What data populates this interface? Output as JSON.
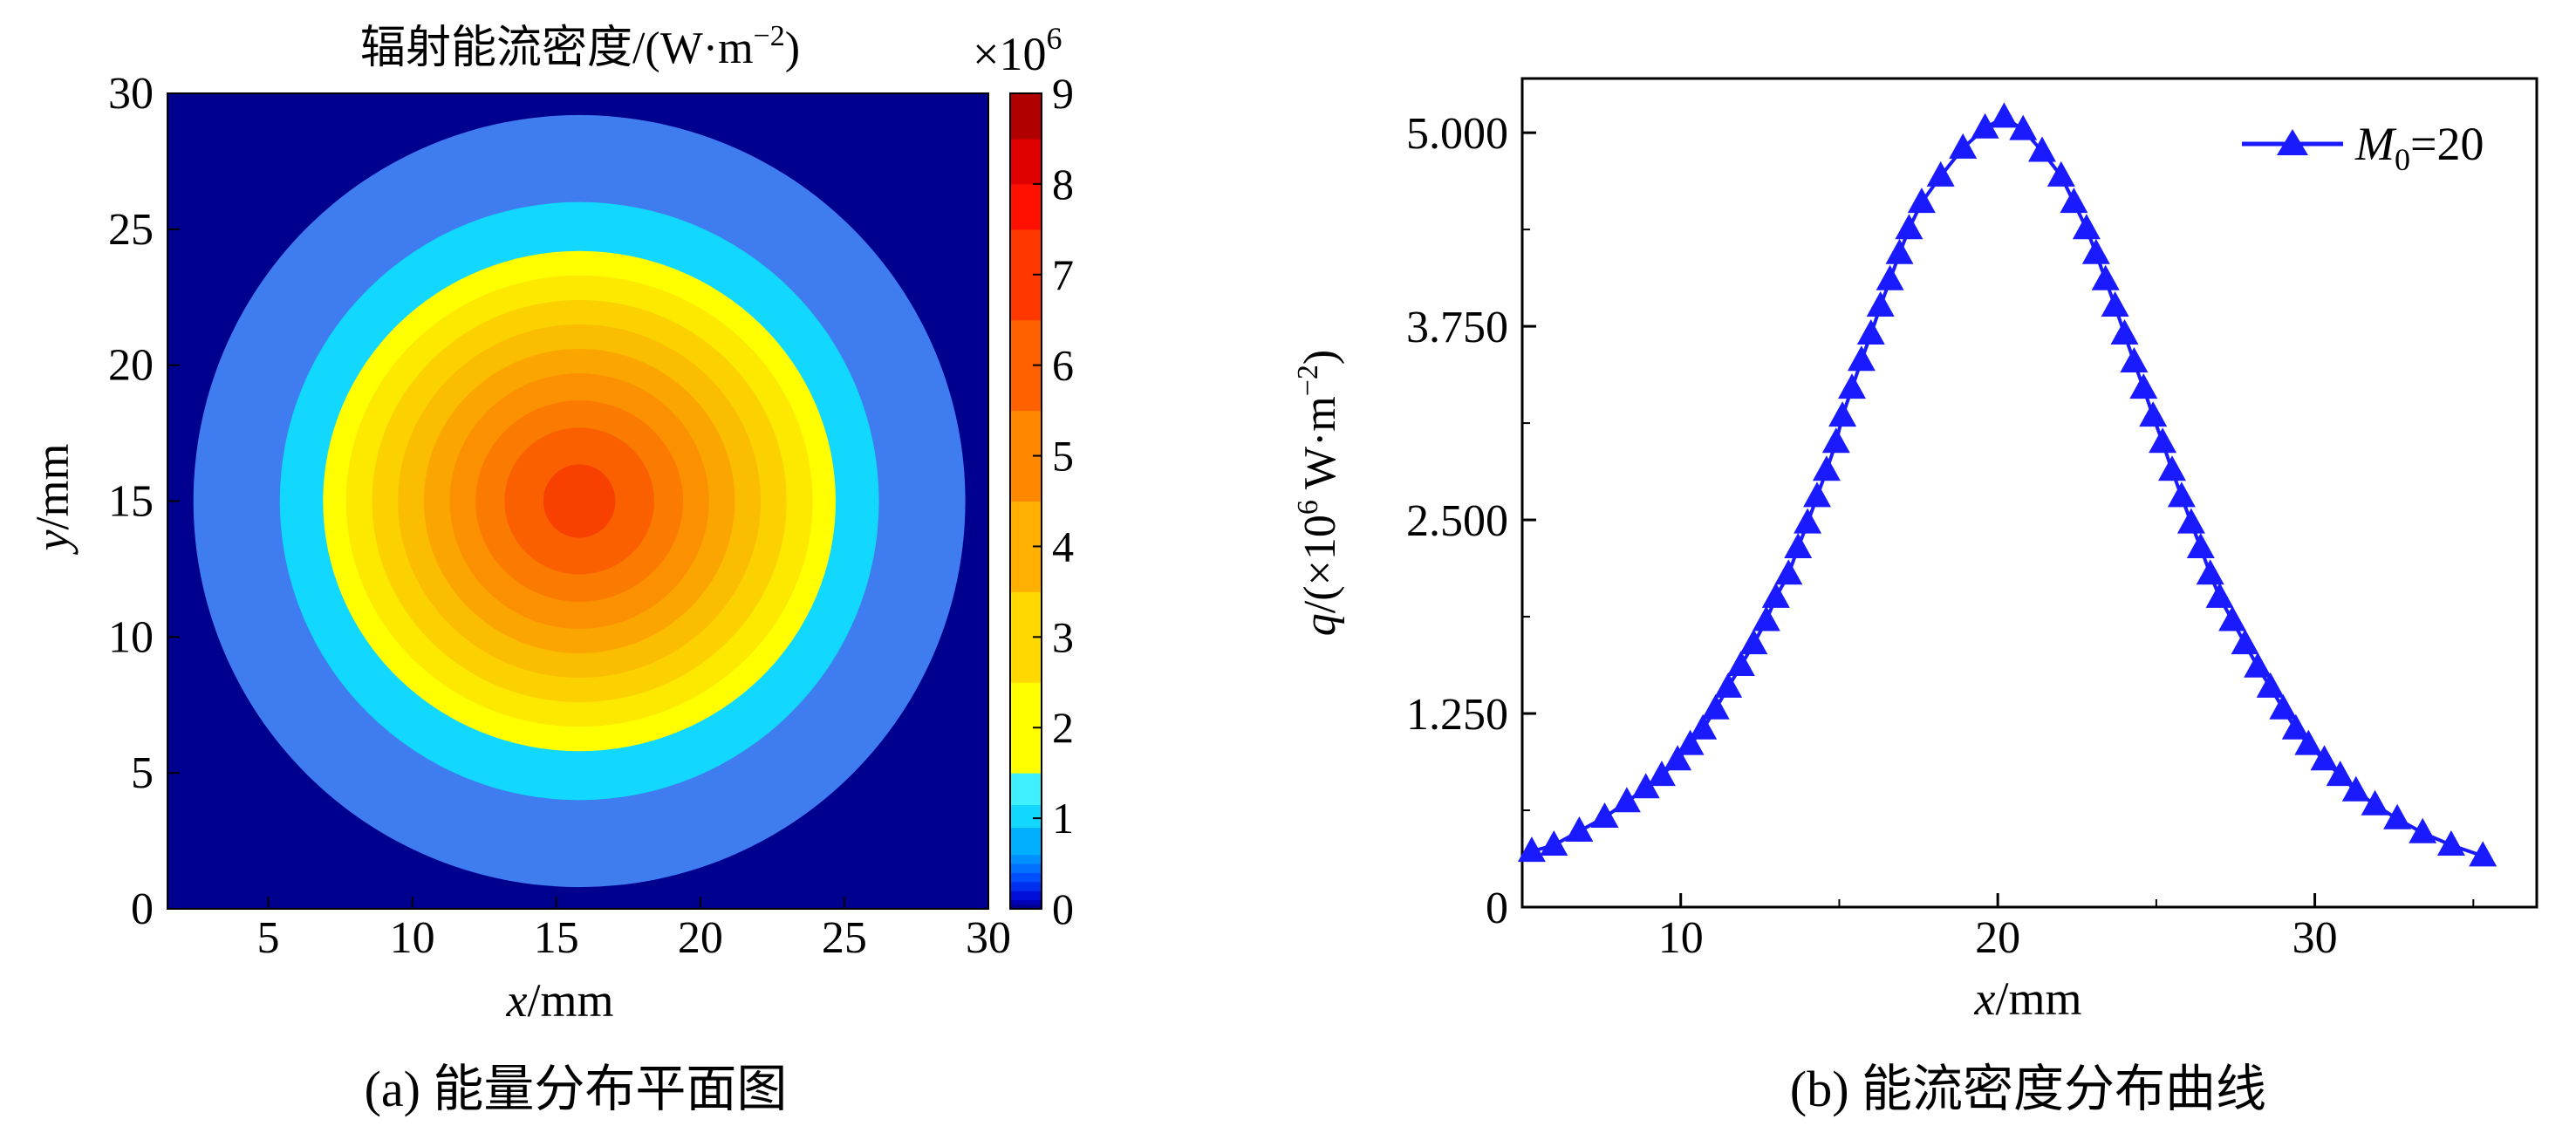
{
  "chart_data": [
    {
      "type": "heatmap",
      "title": "辐射能流密度/(W·m",
      "title_sup": "−2",
      "title_end": ")",
      "scale_label": "×10",
      "scale_exp": "6",
      "xlabel_var": "x",
      "xlabel_unit": "/mm",
      "ylabel_var": "y",
      "ylabel_unit": "/mm",
      "xlim": [
        1.5,
        30
      ],
      "ylim": [
        0,
        30
      ],
      "xticks": [
        5,
        10,
        15,
        20,
        25,
        30
      ],
      "yticks": [
        0,
        5,
        10,
        15,
        20,
        25,
        30
      ],
      "center": [
        15.8,
        15.0
      ],
      "peak_value": 5.0,
      "background_value": 0,
      "levels": [
        {
          "rx": 13.4,
          "ry": 14.2,
          "value": 0.6,
          "color": "#3f7cf0"
        },
        {
          "rx": 10.4,
          "ry": 11.0,
          "value": 1.1,
          "color": "#12d7ff"
        },
        {
          "rx": 8.9,
          "ry": 9.2,
          "value": 1.6,
          "color": "#ffff00"
        },
        {
          "rx": 8.1,
          "ry": 8.3,
          "value": 2.1,
          "color": "#fde800"
        },
        {
          "rx": 7.2,
          "ry": 7.4,
          "value": 2.5,
          "color": "#fbd200"
        },
        {
          "rx": 6.3,
          "ry": 6.5,
          "value": 2.9,
          "color": "#fbbd00"
        },
        {
          "rx": 5.4,
          "ry": 5.6,
          "value": 3.3,
          "color": "#fba600"
        },
        {
          "rx": 4.5,
          "ry": 4.7,
          "value": 3.7,
          "color": "#fb9000"
        },
        {
          "rx": 3.6,
          "ry": 3.7,
          "value": 4.0,
          "color": "#fb7a00"
        },
        {
          "rx": 2.6,
          "ry": 2.7,
          "value": 4.4,
          "color": "#fa6000"
        },
        {
          "rx": 1.25,
          "ry": 1.35,
          "value": 4.8,
          "color": "#f84000"
        }
      ],
      "colorbar": {
        "min": 0,
        "max": 9,
        "ticks": [
          0,
          1,
          2,
          3,
          4,
          5,
          6,
          7,
          8,
          9
        ],
        "colors": [
          "#00008f",
          "#0000b4",
          "#0010d8",
          "#0030f0",
          "#0050ff",
          "#0070ff",
          "#0090ff",
          "#00b0ff",
          "#12d7ff",
          "#40f0ff",
          "#ffff00",
          "#ffd800",
          "#ffb000",
          "#ff8800",
          "#ff6000",
          "#ff3800",
          "#ff1000",
          "#e00000",
          "#b00000",
          "#800000"
        ],
        "stops": [
          0,
          0.05,
          0.1,
          0.2,
          0.3,
          0.4,
          0.5,
          0.6,
          0.9,
          1.15,
          1.5,
          2.5,
          3.5,
          4.5,
          5.5,
          6.5,
          7.5,
          8.0,
          8.5,
          9.0
        ]
      },
      "colors": {
        "background": "#00008f"
      },
      "caption": "(a) 能量分布平面图"
    },
    {
      "type": "line",
      "xlabel_var": "x",
      "xlabel_unit": "/mm",
      "ylabel_var": "q",
      "ylabel_text": "/(×10",
      "ylabel_exp": "6",
      "ylabel_unit": " W·m",
      "ylabel_unit_exp": "−2",
      "ylabel_close": ")",
      "xlim": [
        5,
        37
      ],
      "ylim": [
        0,
        5.35
      ],
      "xticks": [
        10,
        20,
        30
      ],
      "yticks": [
        0,
        1.25,
        2.5,
        3.75,
        5.0
      ],
      "ytick_labels": [
        "0",
        "1.250",
        "2.500",
        "3.750",
        "5.000"
      ],
      "xtick_minor": [
        5,
        15,
        25,
        35
      ],
      "ytick_minor": [
        0.625,
        1.875,
        3.125,
        4.375
      ],
      "legend_position": "top-right",
      "series": [
        {
          "name_var": "M",
          "name_sub": "0",
          "name_rest": "=20",
          "color": "#1a1aff",
          "x": [
            5.3,
            6.0,
            6.8,
            7.6,
            8.3,
            8.9,
            9.4,
            9.9,
            10.3,
            10.7,
            11.1,
            11.5,
            11.9,
            12.3,
            12.7,
            13.0,
            13.4,
            13.7,
            14.0,
            14.3,
            14.6,
            14.9,
            15.1,
            15.4,
            15.7,
            16.0,
            16.3,
            16.6,
            16.9,
            17.2,
            17.6,
            18.2,
            18.9,
            19.6,
            20.2,
            20.8,
            21.4,
            22.0,
            22.4,
            22.8,
            23.1,
            23.4,
            23.7,
            24.0,
            24.3,
            24.6,
            24.9,
            25.2,
            25.5,
            25.8,
            26.1,
            26.4,
            26.7,
            27.0,
            27.4,
            27.8,
            28.2,
            28.6,
            29.0,
            29.4,
            29.8,
            30.3,
            30.8,
            31.3,
            31.9,
            32.6,
            33.4,
            34.3,
            35.3
          ],
          "y": [
            0.36,
            0.4,
            0.49,
            0.58,
            0.68,
            0.77,
            0.85,
            0.95,
            1.05,
            1.15,
            1.28,
            1.42,
            1.56,
            1.7,
            1.85,
            2.0,
            2.15,
            2.32,
            2.48,
            2.65,
            2.82,
            3.0,
            3.17,
            3.35,
            3.53,
            3.7,
            3.88,
            4.05,
            4.22,
            4.38,
            4.55,
            4.72,
            4.9,
            5.03,
            5.1,
            5.02,
            4.88,
            4.72,
            4.55,
            4.38,
            4.22,
            4.05,
            3.88,
            3.7,
            3.52,
            3.35,
            3.17,
            3.0,
            2.82,
            2.65,
            2.48,
            2.32,
            2.15,
            2.0,
            1.85,
            1.7,
            1.55,
            1.42,
            1.28,
            1.15,
            1.05,
            0.95,
            0.85,
            0.75,
            0.66,
            0.57,
            0.48,
            0.4,
            0.33
          ]
        }
      ],
      "caption": "(b) 能流密度分布曲线"
    }
  ]
}
